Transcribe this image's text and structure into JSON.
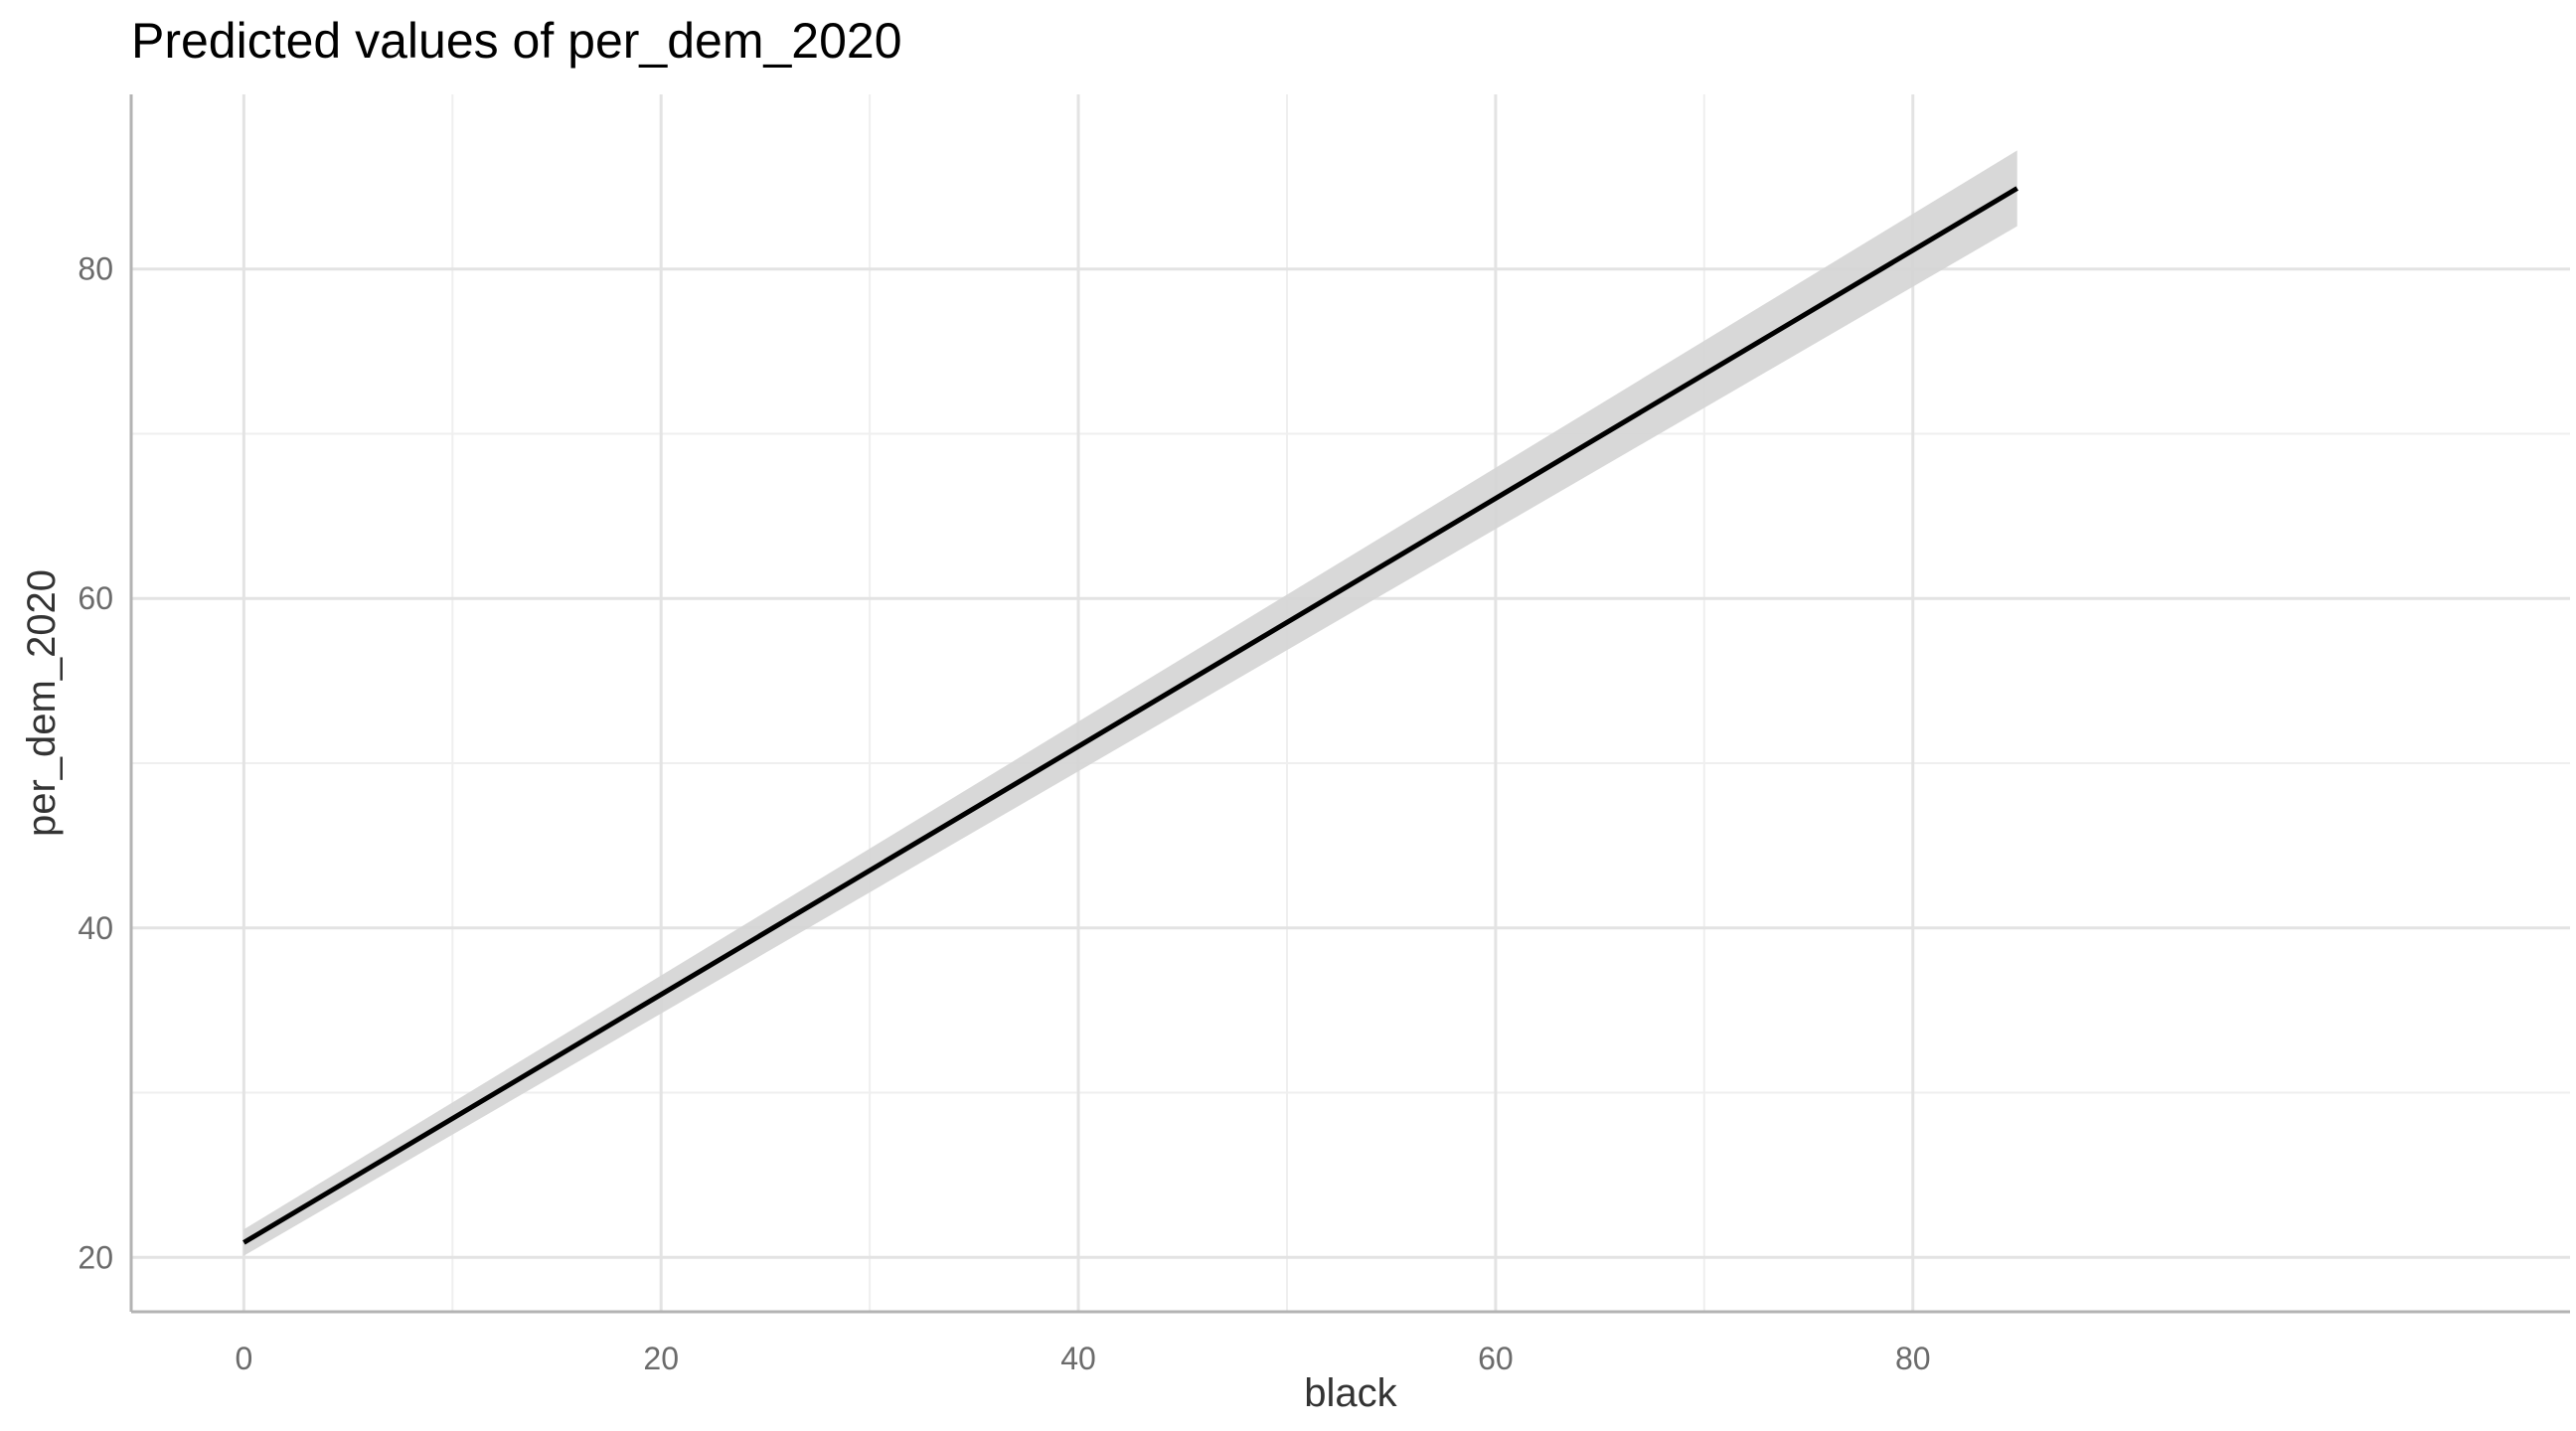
{
  "chart_data": {
    "type": "line",
    "title": "Predicted values of per_dem_2020",
    "xlabel": "black",
    "ylabel": "per_dem_2020",
    "xlim": [
      -5.4,
      111.5
    ],
    "ylim": [
      16.7,
      90.6
    ],
    "x_ticks": [
      0,
      20,
      40,
      60,
      80
    ],
    "x_tick_labels": [
      "0",
      "20",
      "40",
      "60",
      "80"
    ],
    "y_ticks": [
      20,
      40,
      60,
      80
    ],
    "y_tick_labels": [
      "20",
      "40",
      "60",
      "80"
    ],
    "x_minor_ticks": [
      10,
      30,
      50,
      70
    ],
    "y_minor_ticks": [
      30,
      50,
      70
    ],
    "grid": true,
    "legend": "none",
    "series": [
      {
        "x": [
          0,
          85
        ],
        "y": [
          20.9,
          84.9
        ],
        "ci_low": [
          20.1,
          82.6
        ],
        "ci_high": [
          21.7,
          87.2
        ]
      }
    ],
    "colors": {
      "line": "#000000",
      "ribbon": "#d4d4d4",
      "major_grid": "#e3e3e3",
      "minor_grid": "#efefef",
      "axis": "#b3b3b3"
    }
  }
}
